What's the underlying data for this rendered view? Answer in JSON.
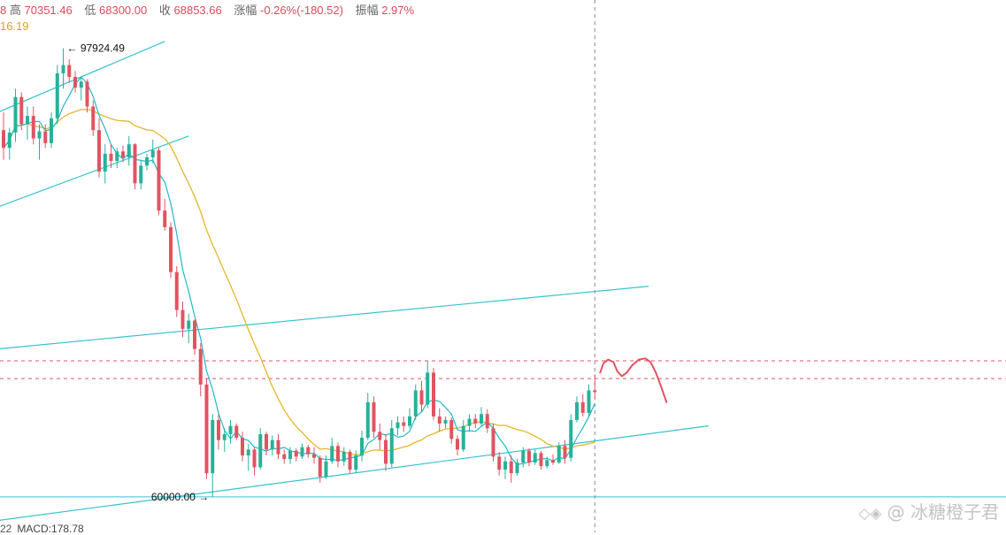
{
  "header": {
    "open_partial": "8",
    "high_label": "高",
    "high_value": "70351.46",
    "low_label": "低",
    "low_value": "68300.00",
    "close_label": "收",
    "close_value": "68853.66",
    "change_label": "涨幅",
    "change_value": "-0.26%(-180.52)",
    "amplitude_label": "振幅",
    "amplitude_value": "2.97%",
    "ma_partial": "16.19"
  },
  "footer": {
    "partial": "22",
    "macd": "MACD:178.78"
  },
  "watermark": {
    "icon": "binance-square-logo-icon",
    "at": "@",
    "author": "冰糖橙子君"
  },
  "colors": {
    "up": "#26b29a",
    "down": "#e05461",
    "ma_fast": "#20b8c8",
    "ma_slow": "#e8b52a",
    "channel": "#35c2cf",
    "forecast": "#e05461",
    "dashed_red": "#e05461",
    "crosshair": "#888888"
  },
  "chart_data": {
    "type": "candlestick",
    "price_range": [
      57000,
      102000
    ],
    "annotations": [
      {
        "text": "97924.49",
        "price": 97924.49,
        "kind": "high-marker"
      },
      {
        "text": "60000.00",
        "price": 60000.0,
        "kind": "low-marker"
      }
    ],
    "horizontal_levels": [
      {
        "price": 71500,
        "style": "dashed",
        "color": "#e05461"
      },
      {
        "price": 70000,
        "style": "dashed",
        "color": "#e05461"
      },
      {
        "price": 60000,
        "style": "solid",
        "color": "#35c2cf"
      }
    ],
    "candles": [
      [
        91000,
        92500,
        88500,
        89500
      ],
      [
        89500,
        91200,
        88500,
        90800
      ],
      [
        90800,
        94500,
        90000,
        93800
      ],
      [
        93800,
        94200,
        91000,
        91500
      ],
      [
        91500,
        93000,
        90200,
        92200
      ],
      [
        92200,
        93000,
        89800,
        90300
      ],
      [
        90300,
        91500,
        88500,
        90900
      ],
      [
        90900,
        91500,
        89500,
        89900
      ],
      [
        89900,
        92500,
        89500,
        92000
      ],
      [
        92000,
        96500,
        91500,
        95800
      ],
      [
        95800,
        97924,
        94500,
        96500
      ],
      [
        96500,
        97000,
        95000,
        95500
      ],
      [
        95500,
        96000,
        94200,
        94600
      ],
      [
        94600,
        95500,
        93500,
        95100
      ],
      [
        95100,
        95300,
        92500,
        93000
      ],
      [
        93000,
        93500,
        90500,
        91000
      ],
      [
        91000,
        92000,
        87000,
        87500
      ],
      [
        87500,
        89800,
        86500,
        89000
      ],
      [
        89000,
        89800,
        87800,
        88400
      ],
      [
        88400,
        89500,
        87800,
        89200
      ],
      [
        89200,
        89700,
        88300,
        88700
      ],
      [
        88700,
        90500,
        88000,
        89800
      ],
      [
        89800,
        89900,
        86000,
        86500
      ],
      [
        86500,
        88500,
        86000,
        88000
      ],
      [
        88000,
        89000,
        87600,
        88700
      ],
      [
        88700,
        90200,
        88200,
        89300
      ],
      [
        89300,
        89500,
        83800,
        84200
      ],
      [
        84200,
        85200,
        82500,
        82800
      ],
      [
        82800,
        83200,
        78500,
        79000
      ],
      [
        79000,
        79500,
        75200,
        75800
      ],
      [
        75800,
        76500,
        73500,
        74200
      ],
      [
        74200,
        75500,
        73000,
        74900
      ],
      [
        74900,
        75000,
        72000,
        72500
      ],
      [
        72500,
        73000,
        68500,
        69500
      ],
      [
        69500,
        70000,
        61500,
        62000
      ],
      [
        62000,
        67000,
        60000,
        66500
      ],
      [
        66500,
        67000,
        64000,
        64800
      ],
      [
        64800,
        65800,
        63800,
        65300
      ],
      [
        65300,
        66500,
        64500,
        66000
      ],
      [
        66000,
        66200,
        64800,
        65000
      ],
      [
        65000,
        65500,
        63000,
        63500
      ],
      [
        63500,
        64500,
        62200,
        64000
      ],
      [
        64000,
        64200,
        61800,
        62500
      ],
      [
        62500,
        65800,
        62300,
        65300
      ],
      [
        65300,
        65500,
        63500,
        64000
      ],
      [
        64000,
        65200,
        63500,
        64800
      ],
      [
        64800,
        65300,
        63200,
        63600
      ],
      [
        63600,
        64000,
        62800,
        63200
      ],
      [
        63200,
        64200,
        62800,
        63900
      ],
      [
        63900,
        64100,
        63000,
        63400
      ],
      [
        63400,
        64500,
        63200,
        64200
      ],
      [
        64200,
        64400,
        63300,
        63600
      ],
      [
        63600,
        64200,
        62800,
        63300
      ],
      [
        63300,
        63500,
        61200,
        61700
      ],
      [
        61700,
        63500,
        61500,
        63000
      ],
      [
        63000,
        65000,
        62800,
        64300
      ],
      [
        64300,
        64600,
        62500,
        63000
      ],
      [
        63000,
        64200,
        62600,
        63800
      ],
      [
        63800,
        64000,
        62000,
        62300
      ],
      [
        62300,
        63900,
        62000,
        63500
      ],
      [
        63500,
        65600,
        63000,
        65000
      ],
      [
        65000,
        68800,
        64800,
        68000
      ],
      [
        68000,
        68500,
        65000,
        65500
      ],
      [
        65500,
        66200,
        64000,
        64800
      ],
      [
        64800,
        65300,
        62200,
        62800
      ],
      [
        62800,
        66500,
        62500,
        65800
      ],
      [
        65800,
        66800,
        65200,
        66300
      ],
      [
        66300,
        66800,
        65500,
        66000
      ],
      [
        66000,
        67500,
        65800,
        66800
      ],
      [
        66800,
        69500,
        66500,
        69000
      ],
      [
        69000,
        69800,
        67200,
        67800
      ],
      [
        67800,
        71500,
        67500,
        70500
      ],
      [
        70500,
        70900,
        66500,
        66800
      ],
      [
        66800,
        67500,
        65500,
        66200
      ],
      [
        66200,
        66800,
        65800,
        66500
      ],
      [
        66500,
        66700,
        64500,
        64900
      ],
      [
        64900,
        65200,
        63500,
        64000
      ],
      [
        64000,
        66500,
        63800,
        66000
      ],
      [
        66000,
        67000,
        65500,
        66600
      ],
      [
        66600,
        67000,
        65800,
        66200
      ],
      [
        66200,
        67600,
        66000,
        67000
      ],
      [
        67000,
        67400,
        65400,
        65800
      ],
      [
        65800,
        66200,
        63000,
        63400
      ],
      [
        63400,
        63800,
        61800,
        62300
      ],
      [
        62300,
        63400,
        61500,
        63000
      ],
      [
        63000,
        63500,
        61200,
        62000
      ],
      [
        62000,
        63200,
        61800,
        62900
      ],
      [
        62900,
        64200,
        62500,
        63900
      ],
      [
        63900,
        64100,
        62600,
        62900
      ],
      [
        62900,
        64000,
        62700,
        63700
      ],
      [
        63700,
        63900,
        62300,
        62600
      ],
      [
        62600,
        63400,
        62400,
        63100
      ],
      [
        63100,
        63600,
        62700,
        62900
      ],
      [
        62900,
        64600,
        62800,
        64300
      ],
      [
        64300,
        64800,
        62800,
        63300
      ],
      [
        63300,
        67000,
        63000,
        66500
      ],
      [
        66500,
        68500,
        66300,
        68000
      ],
      [
        68000,
        68700,
        66800,
        67100
      ],
      [
        67100,
        69500,
        66800,
        69000
      ],
      [
        69000,
        70351,
        68300,
        68853
      ]
    ],
    "forecast_path": [
      [
        70500,
        0
      ],
      [
        71300,
        0.5
      ],
      [
        71600,
        1.2
      ],
      [
        71400,
        2
      ],
      [
        70600,
        2.6
      ],
      [
        70200,
        3.3
      ],
      [
        70500,
        4
      ],
      [
        71100,
        4.8
      ],
      [
        71600,
        5.8
      ],
      [
        71700,
        6.8
      ],
      [
        71400,
        7.6
      ],
      [
        70500,
        8.4
      ],
      [
        69300,
        9.2
      ],
      [
        68000,
        10
      ]
    ]
  }
}
